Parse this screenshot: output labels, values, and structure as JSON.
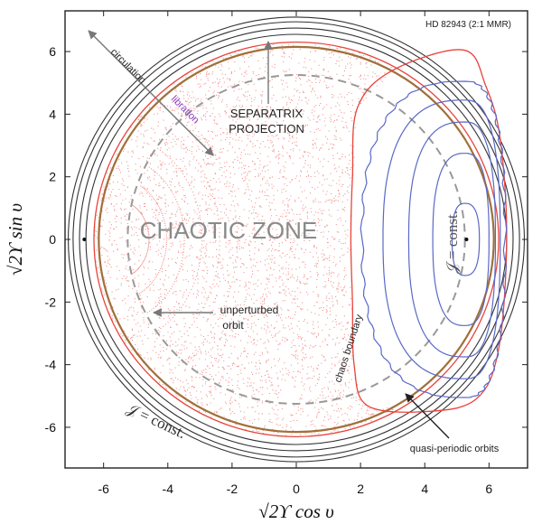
{
  "chart_data": {
    "type": "scatter",
    "title": "HD 82943 (2:1 MMR)",
    "xlabel": "√2ϒ cos υ",
    "ylabel": "√2ϒ sin υ",
    "xlim": [
      -7.2,
      7.2
    ],
    "ylim": [
      -7.3,
      7.3
    ],
    "x_ticks": [
      "-6",
      "-4",
      "-2",
      "0",
      "2",
      "4",
      "6"
    ],
    "y_ticks": [
      "6",
      "4",
      "2",
      "0",
      "-2",
      "-4",
      "-6"
    ],
    "x_tick_values": [
      -6,
      -4,
      -2,
      0,
      2,
      4,
      6
    ],
    "y_tick_values": [
      6,
      4,
      2,
      0,
      -2,
      -4,
      -6
    ],
    "grid": false,
    "annotations": {
      "chaotic_zone": "CHAOTIC ZONE",
      "separatrix_line1": "SEPARATRIX",
      "separatrix_line2": "PROJECTION",
      "circulation": "circulation",
      "libration": "libration",
      "unperturbed_line1": "unperturbed",
      "unperturbed_line2": "orbit",
      "chaos_boundary": "chaos boundary",
      "quasi_periodic": "quasi-periodic orbits",
      "j_const_right": "𝒥 = const.",
      "j_const_bottom": "𝒥 = const."
    },
    "outer_circulating_orbits": {
      "radii": [
        6.55,
        6.75,
        6.95,
        7.1
      ],
      "color": "#333333"
    },
    "separatrix": {
      "radius": 6.3,
      "color": "#e8443a"
    },
    "separatrix_projection": {
      "radius": 6.15,
      "color": "#a0703a"
    },
    "unperturbed_orbit": {
      "radius": 5.25,
      "color": "#999999",
      "style": "dashed"
    },
    "chaos_boundary_curve": {
      "color": "#e8443a",
      "points": [
        [
          5.2,
          6.05
        ],
        [
          3.0,
          5.4
        ],
        [
          1.9,
          4.2
        ],
        [
          1.75,
          2.0
        ],
        [
          1.7,
          0
        ],
        [
          1.75,
          -2.0
        ],
        [
          1.8,
          -4.0
        ],
        [
          2.2,
          -5.3
        ],
        [
          4.0,
          -5.5
        ],
        [
          5.6,
          -5.1
        ],
        [
          6.3,
          -3.5
        ],
        [
          6.55,
          0
        ],
        [
          6.35,
          3.2
        ],
        [
          5.9,
          4.9
        ],
        [
          5.2,
          6.05
        ]
      ]
    },
    "quasi_periodic_orbits": {
      "color": "#5a68c8",
      "center": [
        5.25,
        0
      ],
      "shapes": [
        {
          "a_left": 3.2,
          "a_right": 1.25,
          "b": 5.05
        },
        {
          "a_left": 2.55,
          "a_right": 1.1,
          "b": 4.45
        },
        {
          "a_left": 1.75,
          "a_right": 0.95,
          "b": 3.75
        },
        {
          "a_left": 1.0,
          "a_right": 0.75,
          "b": 2.75
        },
        {
          "a_left": 0.4,
          "a_right": 0.45,
          "b": 1.15
        }
      ]
    },
    "points": [
      {
        "x": -6.6,
        "y": 0
      },
      {
        "x": 5.3,
        "y": 0
      }
    ]
  }
}
